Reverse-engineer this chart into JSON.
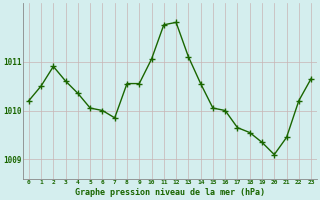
{
  "x": [
    0,
    1,
    2,
    3,
    4,
    5,
    6,
    7,
    8,
    9,
    10,
    11,
    12,
    13,
    14,
    15,
    16,
    17,
    18,
    19,
    20,
    21,
    22,
    23
  ],
  "y": [
    1010.2,
    1010.5,
    1010.9,
    1010.6,
    1010.35,
    1010.05,
    1010.0,
    1009.85,
    1010.55,
    1010.55,
    1011.05,
    1011.75,
    1011.8,
    1011.1,
    1010.55,
    1010.05,
    1010.0,
    1009.65,
    1009.55,
    1009.35,
    1009.1,
    1009.45,
    1010.2,
    1010.65
  ],
  "line_color": "#1a6600",
  "marker": "+",
  "markersize": 4,
  "linewidth": 1.0,
  "bg_color": "#d4eeee",
  "vgrid_color": "#c8b4b4",
  "hgrid_color": "#c8b4b4",
  "xlabel": "Graphe pression niveau de la mer (hPa)",
  "xlabel_color": "#1a6600",
  "tick_color": "#1a6600",
  "yticks": [
    1009,
    1010,
    1011
  ],
  "ylim": [
    1008.6,
    1012.2
  ],
  "xlim": [
    -0.5,
    23.5
  ],
  "axis_color": "#888888"
}
